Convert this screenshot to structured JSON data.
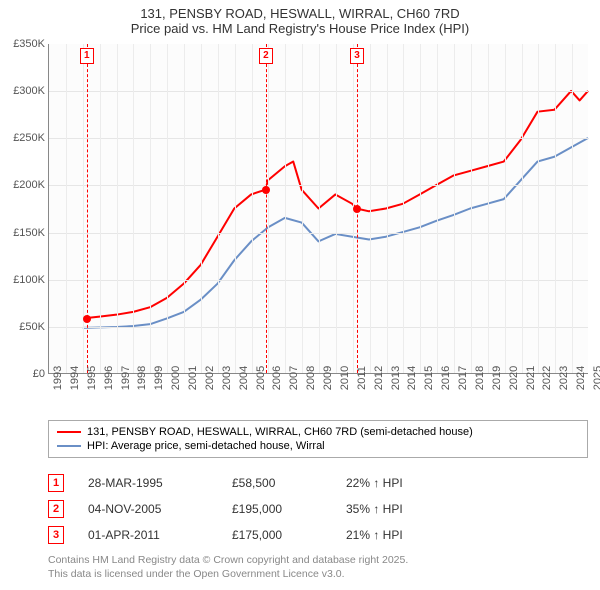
{
  "title": {
    "line1": "131, PENSBY ROAD, HESWALL, WIRRAL, CH60 7RD",
    "line2": "Price paid vs. HM Land Registry's House Price Index (HPI)",
    "fontsize": 13,
    "color": "#333333"
  },
  "chart": {
    "type": "line",
    "background_color": "#fcfcfc",
    "grid_color": "#e6e6e6",
    "axis_color": "#888888",
    "ylim": [
      0,
      350000
    ],
    "ytick_step": 50000,
    "ytick_labels": [
      "£0",
      "£50K",
      "£100K",
      "£150K",
      "£200K",
      "£250K",
      "£300K",
      "£350K"
    ],
    "xlim": [
      1993,
      2025
    ],
    "xtick_step": 1,
    "xtick_labels": [
      "1993",
      "1994",
      "1995",
      "1996",
      "1997",
      "1998",
      "1999",
      "2000",
      "2001",
      "2002",
      "2003",
      "2004",
      "2005",
      "2006",
      "2007",
      "2008",
      "2009",
      "2010",
      "2011",
      "2012",
      "2013",
      "2014",
      "2015",
      "2016",
      "2017",
      "2018",
      "2019",
      "2020",
      "2021",
      "2022",
      "2023",
      "2024",
      "2025"
    ],
    "label_fontsize": 11,
    "label_color": "#555555",
    "series": [
      {
        "name": "price_paid",
        "label": "131, PENSBY ROAD, HESWALL, WIRRAL, CH60 7RD (semi-detached house)",
        "color": "#ff0000",
        "line_width": 2,
        "x": [
          1995.24,
          1996,
          1997,
          1998,
          1999,
          2000,
          2001,
          2002,
          2003,
          2004,
          2005,
          2005.85,
          2006,
          2007,
          2007.5,
          2008,
          2009,
          2010,
          2011,
          2011.25,
          2012,
          2013,
          2014,
          2015,
          2016,
          2017,
          2018,
          2019,
          2020,
          2021,
          2022,
          2023,
          2024,
          2024.5,
          2025
        ],
        "y": [
          58500,
          60000,
          62000,
          65000,
          70000,
          80000,
          95000,
          115000,
          145000,
          175000,
          190000,
          195000,
          205000,
          220000,
          225000,
          195000,
          175000,
          190000,
          180000,
          175000,
          172000,
          175000,
          180000,
          190000,
          200000,
          210000,
          215000,
          220000,
          225000,
          248000,
          278000,
          280000,
          300000,
          290000,
          300000
        ]
      },
      {
        "name": "hpi",
        "label": "HPI: Average price, semi-detached house, Wirral",
        "color": "#6a8fc6",
        "line_width": 2,
        "x": [
          1995,
          1996,
          1997,
          1998,
          1999,
          2000,
          2001,
          2002,
          2003,
          2004,
          2005,
          2006,
          2007,
          2008,
          2009,
          2010,
          2011,
          2012,
          2013,
          2014,
          2015,
          2016,
          2017,
          2018,
          2019,
          2020,
          2021,
          2022,
          2023,
          2024,
          2025
        ],
        "y": [
          48000,
          48500,
          49000,
          50000,
          52000,
          58000,
          65000,
          78000,
          95000,
          120000,
          140000,
          155000,
          165000,
          160000,
          140000,
          148000,
          145000,
          142000,
          145000,
          150000,
          155000,
          162000,
          168000,
          175000,
          180000,
          185000,
          205000,
          225000,
          230000,
          240000,
          250000
        ]
      }
    ],
    "markers": [
      {
        "n": "1",
        "x": 1995.24,
        "y": 58500
      },
      {
        "n": "2",
        "x": 2005.85,
        "y": 195000
      },
      {
        "n": "3",
        "x": 2011.25,
        "y": 175000
      }
    ],
    "marker_color": "#ff0000"
  },
  "legend": {
    "border_color": "#aaaaaa",
    "fontsize": 11,
    "items": [
      {
        "color": "#ff0000",
        "label": "131, PENSBY ROAD, HESWALL, WIRRAL, CH60 7RD (semi-detached house)"
      },
      {
        "color": "#6a8fc6",
        "label": "HPI: Average price, semi-detached house, Wirral"
      }
    ]
  },
  "sales": [
    {
      "n": "1",
      "date": "28-MAR-1995",
      "price": "£58,500",
      "pct": "22% ↑ HPI"
    },
    {
      "n": "2",
      "date": "04-NOV-2005",
      "price": "£195,000",
      "pct": "35% ↑ HPI"
    },
    {
      "n": "3",
      "date": "01-APR-2011",
      "price": "£175,000",
      "pct": "21% ↑ HPI"
    }
  ],
  "footer": {
    "line1": "Contains HM Land Registry data © Crown copyright and database right 2025.",
    "line2": "This data is licensed under the Open Government Licence v3.0.",
    "color": "#888888",
    "fontsize": 10.5
  }
}
